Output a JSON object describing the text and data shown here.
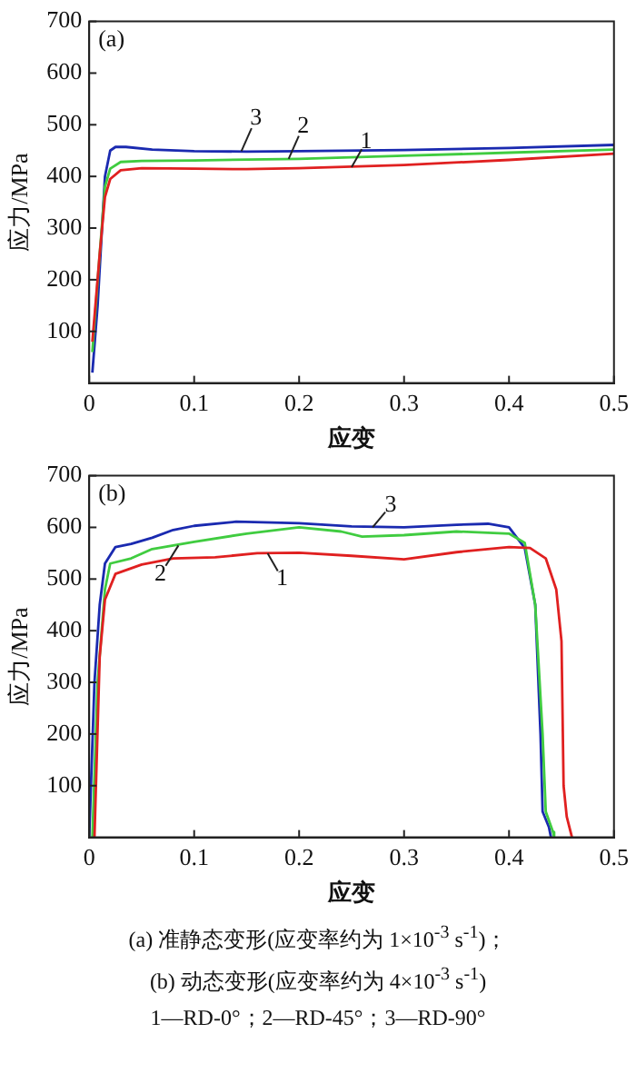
{
  "chart_data": [
    {
      "type": "line",
      "title": "(a)",
      "xlabel": "应变",
      "ylabel": "应力/MPa",
      "xlim": [
        0,
        0.5
      ],
      "ylim": [
        0,
        700
      ],
      "xticks": [
        0,
        0.1,
        0.2,
        0.3,
        0.4,
        0.5
      ],
      "yticks": [
        100,
        200,
        300,
        400,
        500,
        600,
        700
      ],
      "grid": false,
      "series": [
        {
          "color": "#e02020",
          "x": [
            0.003,
            0.01,
            0.015,
            0.02,
            0.03,
            0.05,
            0.1,
            0.15,
            0.2,
            0.3,
            0.4,
            0.5
          ],
          "values": [
            80,
            250,
            360,
            395,
            412,
            416,
            415,
            414,
            416,
            422,
            432,
            444
          ]
        },
        {
          "color": "#40cc40",
          "x": [
            0.003,
            0.01,
            0.015,
            0.02,
            0.03,
            0.05,
            0.1,
            0.2,
            0.3,
            0.4,
            0.5
          ],
          "values": [
            60,
            250,
            380,
            415,
            428,
            430,
            431,
            434,
            440,
            446,
            452
          ]
        },
        {
          "color": "#1a2ab0",
          "x": [
            0.003,
            0.008,
            0.015,
            0.02,
            0.025,
            0.035,
            0.06,
            0.1,
            0.15,
            0.2,
            0.3,
            0.4,
            0.5
          ],
          "values": [
            20,
            150,
            400,
            450,
            457,
            457,
            452,
            449,
            448,
            449,
            451,
            455,
            461
          ]
        }
      ],
      "annotations": [
        {
          "text": "1",
          "x": 0.25,
          "y": 418
        },
        {
          "text": "2",
          "x": 0.19,
          "y": 434
        },
        {
          "text": "3",
          "x": 0.145,
          "y": 449
        }
      ]
    },
    {
      "type": "line",
      "title": "(b)",
      "xlabel": "应变",
      "ylabel": "应力/MPa",
      "xlim": [
        0,
        0.5
      ],
      "ylim": [
        0,
        700
      ],
      "xticks": [
        0,
        0.1,
        0.2,
        0.3,
        0.4,
        0.5
      ],
      "yticks": [
        100,
        200,
        300,
        400,
        500,
        600,
        700
      ],
      "grid": false,
      "series": [
        {
          "color": "#e02020",
          "x": [
            0.005,
            0.01,
            0.015,
            0.025,
            0.05,
            0.08,
            0.12,
            0.16,
            0.2,
            0.25,
            0.3,
            0.35,
            0.4,
            0.42,
            0.435,
            0.445,
            0.45,
            0.452,
            0.455,
            0.46
          ],
          "values": [
            0,
            350,
            460,
            510,
            528,
            540,
            542,
            550,
            551,
            545,
            538,
            552,
            562,
            560,
            540,
            480,
            380,
            100,
            40,
            0
          ]
        },
        {
          "color": "#40cc40",
          "x": [
            0.003,
            0.008,
            0.015,
            0.02,
            0.04,
            0.06,
            0.1,
            0.15,
            0.2,
            0.24,
            0.26,
            0.3,
            0.35,
            0.4,
            0.415,
            0.425,
            0.432,
            0.435,
            0.442,
            0.443
          ],
          "values": [
            0,
            300,
            480,
            530,
            540,
            558,
            572,
            588,
            600,
            592,
            582,
            585,
            592,
            588,
            570,
            450,
            200,
            50,
            10,
            0
          ]
        },
        {
          "color": "#1a2ab0",
          "x": [
            0,
            0.005,
            0.01,
            0.015,
            0.025,
            0.04,
            0.06,
            0.08,
            0.1,
            0.14,
            0.2,
            0.25,
            0.3,
            0.35,
            0.38,
            0.4,
            0.415,
            0.425,
            0.43,
            0.432,
            0.438,
            0.44
          ],
          "values": [
            0,
            300,
            450,
            530,
            562,
            568,
            580,
            595,
            603,
            611,
            608,
            602,
            600,
            605,
            607,
            600,
            560,
            450,
            200,
            50,
            20,
            0
          ]
        }
      ],
      "annotations": [
        {
          "text": "1",
          "x": 0.17,
          "y": 550
        },
        {
          "text": "2",
          "x": 0.085,
          "y": 565
        },
        {
          "text": "3",
          "x": 0.27,
          "y": 600
        },
        "(a) 准静态变形(应变率约为 1×10$^{-3}$ s$^{-1}$)；",
        "(b) 动态变形(应变率约为 4×10$^{-3}$ s$^{-1}$)",
        "1—RD-0°；2—RD-45°；3—RD-90°"
      ]
    }
  ]
}
